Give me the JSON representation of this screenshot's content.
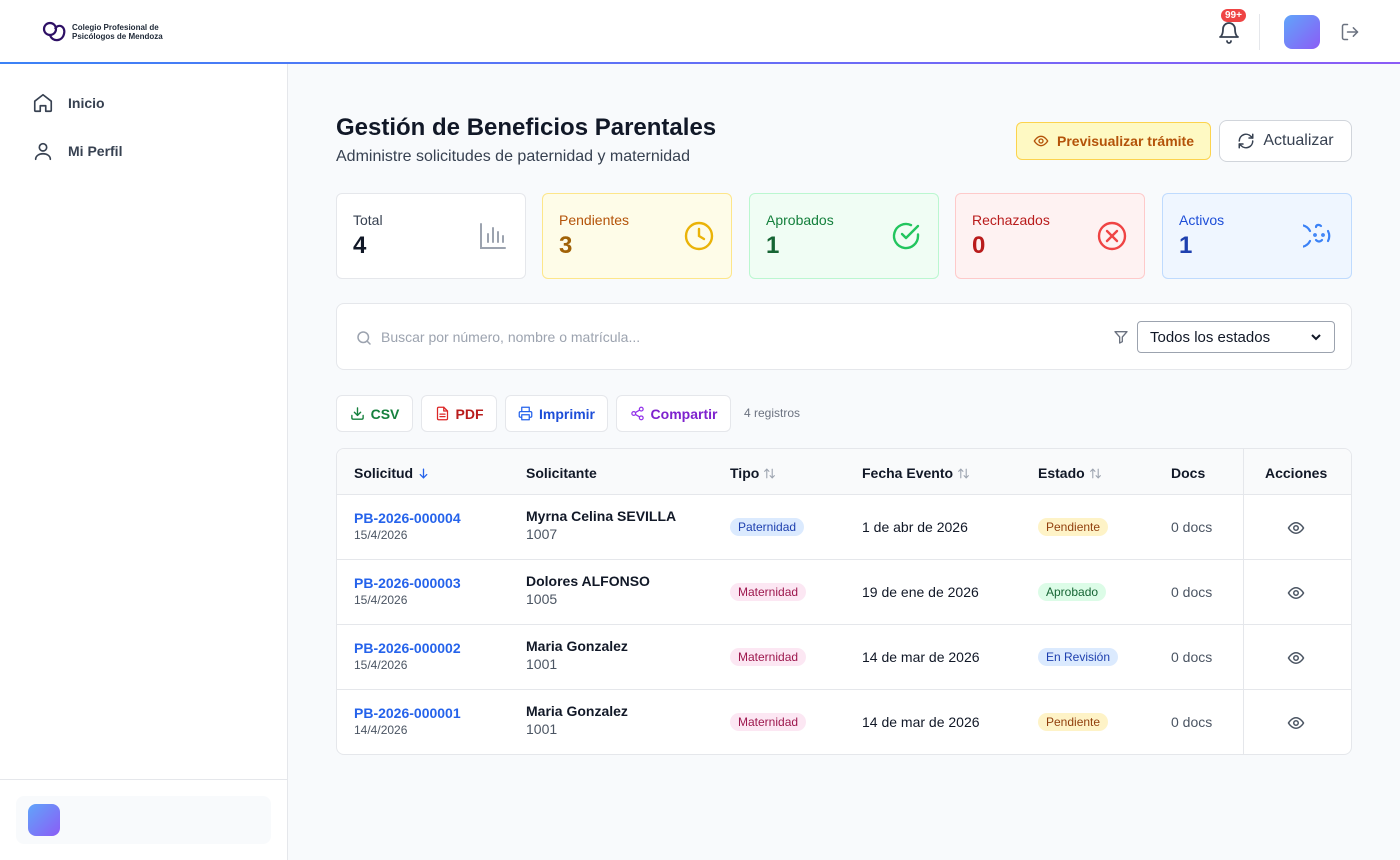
{
  "header": {
    "logo_line1": "Colegio Profesional de",
    "logo_line2": "Psicólogos de Mendoza",
    "notification_badge": "99+"
  },
  "sidebar": {
    "items": [
      {
        "label": "Inicio",
        "icon": "home-icon"
      },
      {
        "label": "Mi Perfil",
        "icon": "user-icon"
      }
    ]
  },
  "page": {
    "title": "Gestión de Beneficios Parentales",
    "subtitle": "Administre solicitudes de paternidad y maternidad",
    "preview_label": "Previsualizar trámite",
    "refresh_label": "Actualizar"
  },
  "stats": [
    {
      "label": "Total",
      "value": "4",
      "icon": "bar-chart-icon"
    },
    {
      "label": "Pendientes",
      "value": "3",
      "icon": "clock-icon"
    },
    {
      "label": "Aprobados",
      "value": "1",
      "icon": "check-circle-icon"
    },
    {
      "label": "Rechazados",
      "value": "0",
      "icon": "x-circle-icon"
    },
    {
      "label": "Activos",
      "value": "1",
      "icon": "baby-icon"
    }
  ],
  "filters": {
    "search_placeholder": "Buscar por número, nombre o matrícula...",
    "state_selected": "Todos los estados"
  },
  "actions": {
    "csv": "CSV",
    "pdf": "PDF",
    "print": "Imprimir",
    "share": "Compartir",
    "count": "4 registros"
  },
  "table": {
    "headers": [
      "Solicitud",
      "Solicitante",
      "Tipo",
      "Fecha Evento",
      "Estado",
      "Docs",
      "Acciones"
    ],
    "rows": [
      {
        "id": "PB-2026-000004",
        "date": "15/4/2026",
        "name": "Myrna Celina SEVILLA",
        "matricula": "1007",
        "tipo": "Paternidad",
        "fecha": "1 de abr de 2026",
        "estado": "Pendiente",
        "docs": "0 docs"
      },
      {
        "id": "PB-2026-000003",
        "date": "15/4/2026",
        "name": "Dolores ALFONSO",
        "matricula": "1005",
        "tipo": "Maternidad",
        "fecha": "19 de ene de 2026",
        "estado": "Aprobado",
        "docs": "0 docs"
      },
      {
        "id": "PB-2026-000002",
        "date": "15/4/2026",
        "name": "Maria Gonzalez",
        "matricula": "1001",
        "tipo": "Maternidad",
        "fecha": "14 de mar de 2026",
        "estado": "En Revisión",
        "docs": "0 docs"
      },
      {
        "id": "PB-2026-000001",
        "date": "14/4/2026",
        "name": "Maria Gonzalez",
        "matricula": "1001",
        "tipo": "Maternidad",
        "fecha": "14 de mar de 2026",
        "estado": "Pendiente",
        "docs": "0 docs"
      }
    ]
  },
  "colors": {
    "accent": "#2563eb",
    "pending": "#fef3c7",
    "approved": "#dcfce7",
    "rejected": "#fee2e2",
    "review": "#dbeafe",
    "paternidad": "#dbeafe",
    "maternidad": "#fce7f3"
  }
}
